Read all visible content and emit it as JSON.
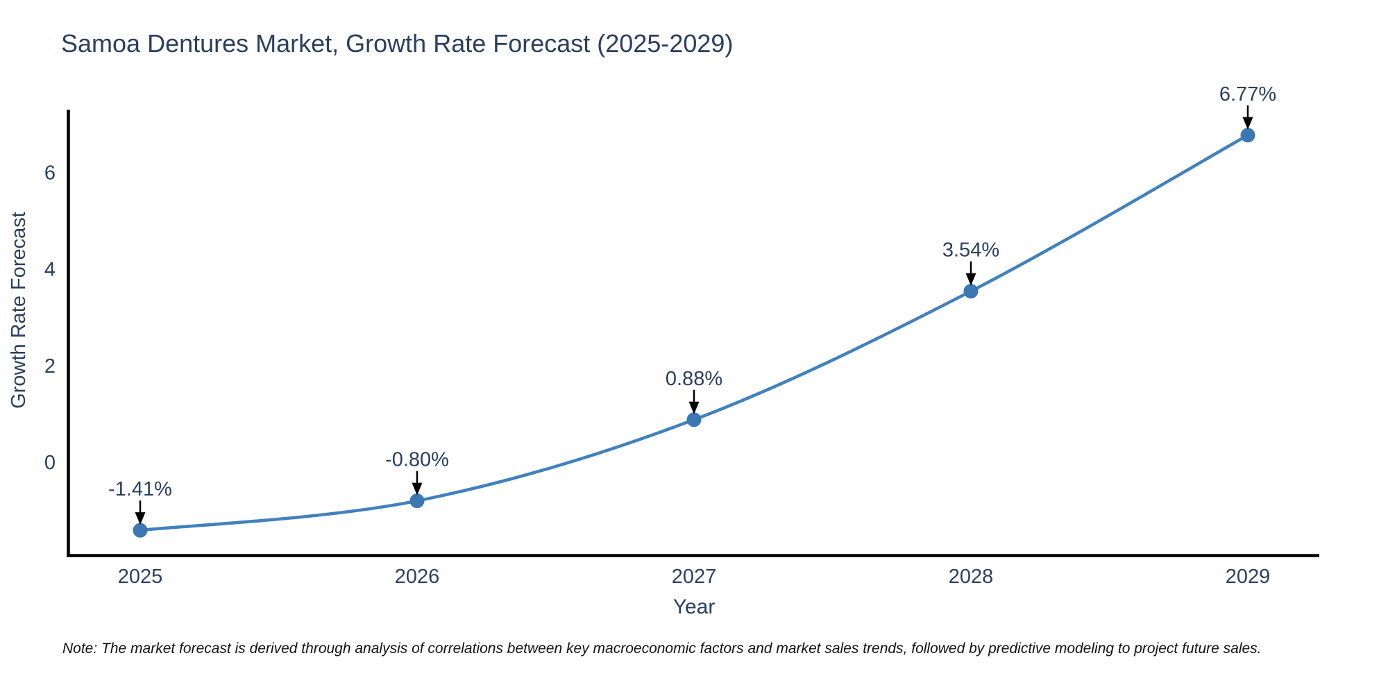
{
  "page": {
    "background": "#ffffff"
  },
  "chart": {
    "title": "Samoa Dentures Market, Growth Rate Forecast (2025-2029)",
    "note": "Note: The market forecast is derived through analysis of correlations between key macroeconomic factors and market sales trends, followed by predictive modeling to project future sales.",
    "colors": {
      "line": "#4181bd",
      "marker": "#3b78b3",
      "axis": "#000000",
      "arrow": "#000000",
      "text": "#2a3f5f",
      "note_text": "#111111"
    }
  },
  "chart_data": {
    "type": "line",
    "title": "Samoa Dentures Market, Growth Rate Forecast (2025-2029)",
    "xlabel": "Year",
    "ylabel": "Growth Rate Forecast",
    "categories": [
      "2025",
      "2026",
      "2027",
      "2028",
      "2029"
    ],
    "series": [
      {
        "name": "Growth Rate Forecast",
        "values": [
          -1.41,
          -0.8,
          0.88,
          3.54,
          6.77
        ]
      }
    ],
    "point_labels": [
      "-1.41%",
      "-0.80%",
      "0.88%",
      "3.54%",
      "6.77%"
    ],
    "yticks": [
      0,
      2,
      4,
      6
    ],
    "ylim": [
      -1.9,
      7.3
    ],
    "grid": false,
    "legend": false,
    "marker_style": "circle",
    "annotations_have_arrows": true
  }
}
